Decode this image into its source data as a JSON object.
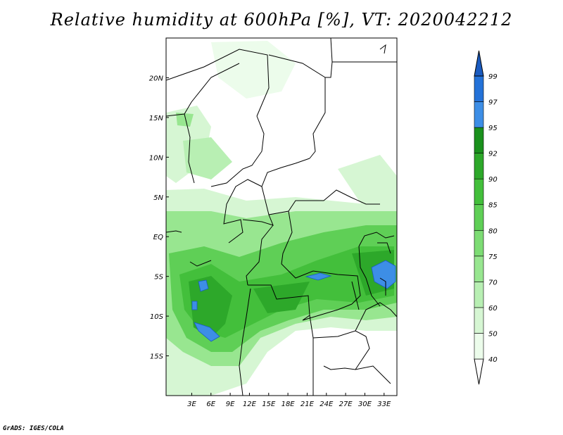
{
  "title": "Relative humidity at 600hPa [%], VT: 2020042212",
  "credit": "GrADS: IGES/COLA",
  "map": {
    "lon_range": [
      -1,
      35
    ],
    "lat_range": [
      -20,
      25
    ],
    "lon_ticks": [
      {
        "value": 3,
        "label": "3E"
      },
      {
        "value": 6,
        "label": "6E"
      },
      {
        "value": 9,
        "label": "9E"
      },
      {
        "value": 12,
        "label": "12E"
      },
      {
        "value": 15,
        "label": "15E"
      },
      {
        "value": 18,
        "label": "18E"
      },
      {
        "value": 21,
        "label": "21E"
      },
      {
        "value": 24,
        "label": "24E"
      },
      {
        "value": 27,
        "label": "27E"
      },
      {
        "value": 30,
        "label": "30E"
      },
      {
        "value": 33,
        "label": "33E"
      }
    ],
    "lat_ticks": [
      {
        "value": 20,
        "label": "20N"
      },
      {
        "value": 15,
        "label": "15N"
      },
      {
        "value": 10,
        "label": "10N"
      },
      {
        "value": 5,
        "label": "5N"
      },
      {
        "value": 0,
        "label": "EQ"
      },
      {
        "value": -5,
        "label": "5S"
      },
      {
        "value": -10,
        "label": "10S"
      },
      {
        "value": -15,
        "label": "15S"
      }
    ]
  },
  "colorbar": {
    "levels": [
      {
        "label": "40",
        "color": "#ecfceb"
      },
      {
        "label": "50",
        "color": "#d6f6d3"
      },
      {
        "label": "60",
        "color": "#b8efb3"
      },
      {
        "label": "70",
        "color": "#98e690"
      },
      {
        "label": "75",
        "color": "#7ddc74"
      },
      {
        "label": "80",
        "color": "#5fcf56"
      },
      {
        "label": "85",
        "color": "#43bf3b"
      },
      {
        "label": "90",
        "color": "#2da82a"
      },
      {
        "label": "92",
        "color": "#1a911d"
      },
      {
        "label": "95",
        "color": "#3d8ee6"
      },
      {
        "label": "97",
        "color": "#2472d8"
      },
      {
        "label": "99",
        "color": "#1a5bc0"
      }
    ],
    "low_color": "#ffffff",
    "high_color": "#1a5bc0"
  }
}
